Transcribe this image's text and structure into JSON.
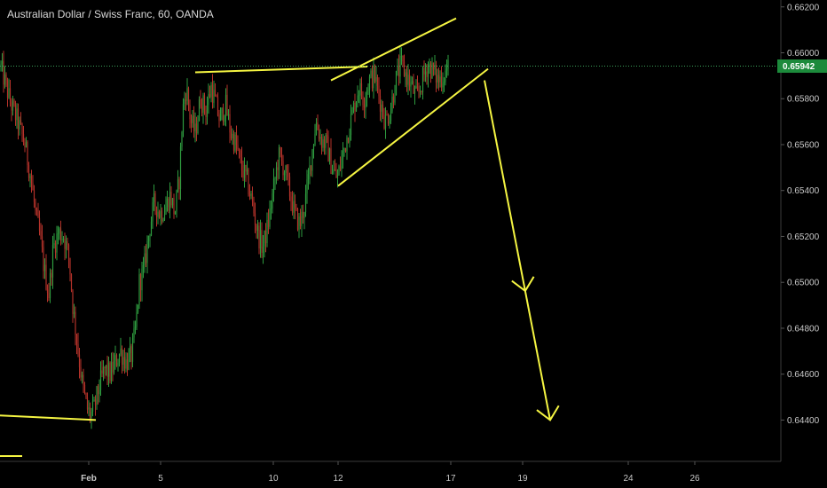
{
  "chart_data": {
    "type": "candlestick",
    "title": "Australian Dollar / Swiss Franc, 60, OANDA",
    "current_price": 0.65942,
    "current_price_label": "0.65942",
    "ylim": [
      0.6422,
      0.6623
    ],
    "y_ticks": [
      {
        "value": 0.662,
        "label": "0.66200"
      },
      {
        "value": 0.66,
        "label": "0.66000"
      },
      {
        "value": 0.658,
        "label": "0.65800"
      },
      {
        "value": 0.656,
        "label": "0.65600"
      },
      {
        "value": 0.654,
        "label": "0.65400"
      },
      {
        "value": 0.652,
        "label": "0.65200"
      },
      {
        "value": 0.65,
        "label": "0.65000"
      },
      {
        "value": 0.648,
        "label": "0.64800"
      },
      {
        "value": 0.646,
        "label": "0.64600"
      },
      {
        "value": 0.644,
        "label": "0.64400"
      }
    ],
    "x_ticks": [
      "Feb",
      "5",
      "10",
      "12",
      "17",
      "19",
      "24",
      "26"
    ],
    "price_path": [
      [
        0,
        0.6595
      ],
      [
        5,
        0.6588
      ],
      [
        12,
        0.6578
      ],
      [
        20,
        0.657
      ],
      [
        28,
        0.656
      ],
      [
        35,
        0.6545
      ],
      [
        40,
        0.653
      ],
      [
        45,
        0.652
      ],
      [
        50,
        0.6505
      ],
      [
        55,
        0.6495
      ],
      [
        60,
        0.6515
      ],
      [
        66,
        0.6522
      ],
      [
        72,
        0.652
      ],
      [
        78,
        0.651
      ],
      [
        82,
        0.649
      ],
      [
        88,
        0.647
      ],
      [
        93,
        0.6455
      ],
      [
        98,
        0.6445
      ],
      [
        102,
        0.6442
      ],
      [
        106,
        0.6445
      ],
      [
        112,
        0.6455
      ],
      [
        118,
        0.6462
      ],
      [
        124,
        0.646
      ],
      [
        130,
        0.6465
      ],
      [
        136,
        0.647
      ],
      [
        142,
        0.6465
      ],
      [
        148,
        0.6468
      ],
      [
        153,
        0.648
      ],
      [
        157,
        0.65
      ],
      [
        162,
        0.6505
      ],
      [
        168,
        0.6522
      ],
      [
        174,
        0.6535
      ],
      [
        180,
        0.653
      ],
      [
        186,
        0.6532
      ],
      [
        192,
        0.6538
      ],
      [
        197,
        0.653
      ],
      [
        202,
        0.6545
      ],
      [
        206,
        0.6575
      ],
      [
        210,
        0.6585
      ],
      [
        215,
        0.657
      ],
      [
        220,
        0.6565
      ],
      [
        226,
        0.658
      ],
      [
        232,
        0.6575
      ],
      [
        238,
        0.6585
      ],
      [
        243,
        0.6578
      ],
      [
        248,
        0.657
      ],
      [
        254,
        0.6578
      ],
      [
        260,
        0.6565
      ],
      [
        266,
        0.656
      ],
      [
        272,
        0.655
      ],
      [
        278,
        0.6545
      ],
      [
        284,
        0.6535
      ],
      [
        290,
        0.6522
      ],
      [
        296,
        0.6515
      ],
      [
        302,
        0.6525
      ],
      [
        308,
        0.654
      ],
      [
        314,
        0.6555
      ],
      [
        320,
        0.655
      ],
      [
        326,
        0.654
      ],
      [
        332,
        0.653
      ],
      [
        338,
        0.6525
      ],
      [
        344,
        0.6535
      ],
      [
        350,
        0.6552
      ],
      [
        356,
        0.657
      ],
      [
        362,
        0.6562
      ],
      [
        368,
        0.656
      ],
      [
        374,
        0.655
      ],
      [
        380,
        0.6545
      ],
      [
        386,
        0.6555
      ],
      [
        392,
        0.6565
      ],
      [
        398,
        0.6575
      ],
      [
        404,
        0.6585
      ],
      [
        410,
        0.658
      ],
      [
        416,
        0.6588
      ],
      [
        422,
        0.659
      ],
      [
        428,
        0.658
      ],
      [
        434,
        0.657
      ],
      [
        440,
        0.6575
      ],
      [
        446,
        0.6588
      ],
      [
        452,
        0.6595
      ],
      [
        458,
        0.659
      ],
      [
        464,
        0.6585
      ],
      [
        470,
        0.658
      ],
      [
        476,
        0.6588
      ],
      [
        482,
        0.6595
      ],
      [
        488,
        0.6592
      ],
      [
        494,
        0.6588
      ],
      [
        500,
        0.659
      ],
      [
        505,
        0.6594
      ]
    ],
    "drawings": [
      {
        "name": "support-line-low",
        "from": [
          0,
          0.6442
        ],
        "to": [
          108,
          0.644
        ]
      },
      {
        "name": "resistance-line",
        "from": [
          220,
          0.65915
        ],
        "to": [
          414,
          0.6594
        ]
      },
      {
        "name": "wedge-upper-line",
        "from": [
          373,
          0.6588
        ],
        "to": [
          514,
          0.6615
        ]
      },
      {
        "name": "wedge-lower-line",
        "from": [
          381,
          0.6542
        ],
        "to": [
          550,
          0.6593
        ]
      },
      {
        "name": "projection-arrow",
        "from": [
          546,
          0.6588
        ],
        "to": [
          620,
          0.644
        ]
      }
    ]
  }
}
